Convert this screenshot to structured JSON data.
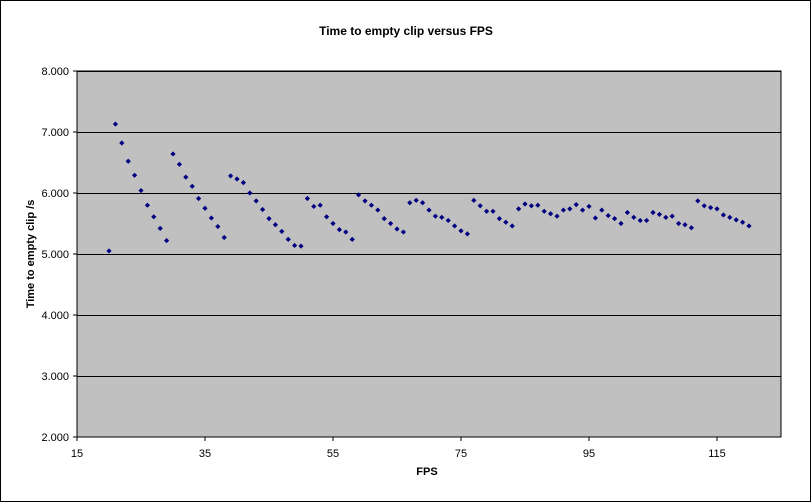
{
  "chart_data": {
    "type": "scatter",
    "title": "Time to empty clip versus FPS",
    "xlabel": "FPS",
    "ylabel": "Time to empty clip /s",
    "xlim": [
      15,
      125
    ],
    "ylim": [
      2.0,
      8.0
    ],
    "x_ticks": [
      15,
      35,
      55,
      75,
      95,
      115
    ],
    "y_ticks": [
      2.0,
      3.0,
      4.0,
      5.0,
      6.0,
      7.0,
      8.0
    ],
    "x_tick_labels": [
      "15",
      "35",
      "55",
      "75",
      "95",
      "115"
    ],
    "y_tick_labels": [
      "2.000",
      "3.000",
      "4.000",
      "5.000",
      "6.000",
      "7.000",
      "8.000"
    ],
    "grid": "horizontal",
    "legend": "none",
    "colors": {
      "plot_area": "#c0c0c0",
      "marker": "#000080",
      "gridline": "#000000",
      "border": "#000000"
    },
    "x": [
      20,
      21,
      22,
      23,
      24,
      25,
      26,
      27,
      28,
      29,
      30,
      31,
      32,
      33,
      34,
      35,
      36,
      37,
      38,
      39,
      40,
      41,
      42,
      43,
      44,
      45,
      46,
      47,
      48,
      49,
      50,
      51,
      52,
      53,
      54,
      55,
      56,
      57,
      58,
      59,
      60,
      61,
      62,
      63,
      64,
      65,
      66,
      67,
      68,
      69,
      70,
      71,
      72,
      73,
      74,
      75,
      76,
      77,
      78,
      79,
      80,
      81,
      82,
      83,
      84,
      85,
      86,
      87,
      88,
      89,
      90,
      91,
      92,
      93,
      94,
      95,
      96,
      97,
      98,
      99,
      100,
      101,
      102,
      103,
      104,
      105,
      106,
      107,
      108,
      109,
      110,
      111,
      112,
      113,
      114,
      115,
      116,
      117,
      118,
      119,
      120
    ],
    "y": [
      5.05,
      7.13,
      6.82,
      6.52,
      6.29,
      6.04,
      5.8,
      5.61,
      5.42,
      5.22,
      6.64,
      6.47,
      6.26,
      6.11,
      5.91,
      5.75,
      5.59,
      5.45,
      5.27,
      6.28,
      6.23,
      6.17,
      6.0,
      5.87,
      5.73,
      5.58,
      5.48,
      5.37,
      5.24,
      5.14,
      5.13,
      5.91,
      5.78,
      5.8,
      5.61,
      5.5,
      5.4,
      5.36,
      5.24,
      5.97,
      5.87,
      5.8,
      5.72,
      5.58,
      5.5,
      5.41,
      5.36,
      5.84,
      5.88,
      5.84,
      5.72,
      5.62,
      5.6,
      5.55,
      5.46,
      5.38,
      5.33,
      5.88,
      5.79,
      5.7,
      5.7,
      5.58,
      5.52,
      5.46,
      5.74,
      5.82,
      5.79,
      5.8,
      5.7,
      5.66,
      5.62,
      5.72,
      5.74,
      5.81,
      5.72,
      5.78,
      5.59,
      5.72,
      5.63,
      5.58,
      5.5,
      5.68,
      5.6,
      5.55,
      5.55,
      5.68,
      5.65,
      5.6,
      5.62,
      5.5,
      5.48,
      5.43,
      5.87,
      5.79,
      5.76,
      5.74,
      5.64,
      5.6,
      5.56,
      5.52,
      5.46
    ]
  }
}
